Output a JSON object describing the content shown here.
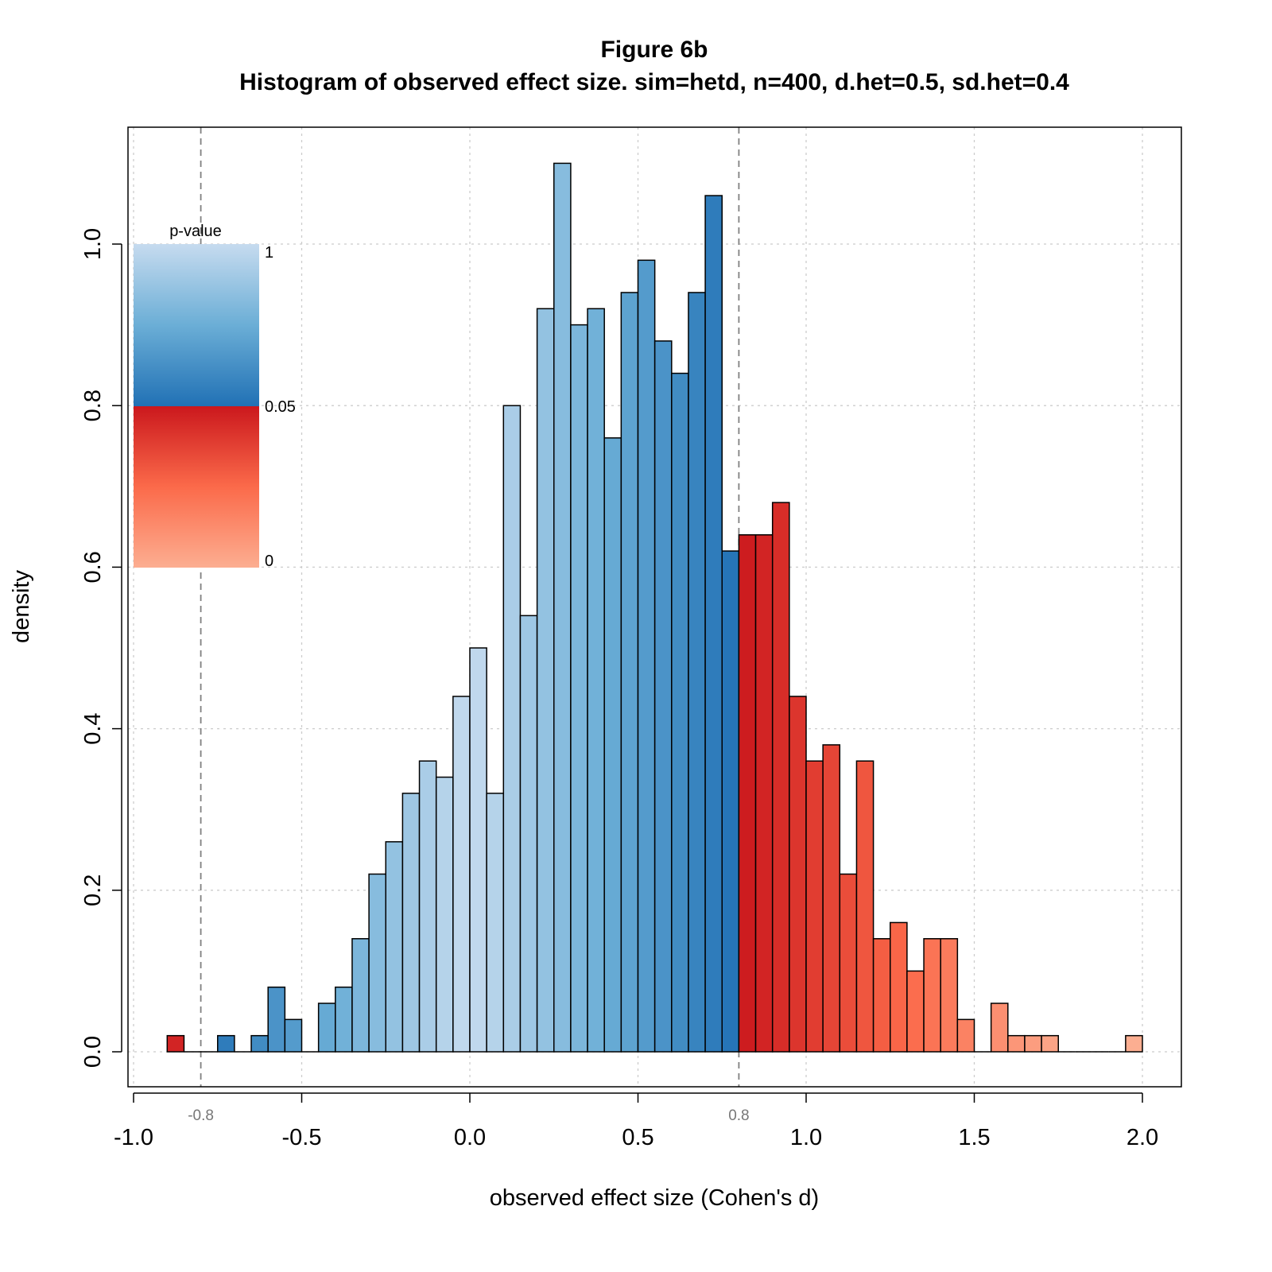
{
  "chart_data": {
    "type": "bar",
    "title": "Figure 6b",
    "subtitle": "Histogram of observed effect size. sim=hetd, n=400, d.het=0.5, sd.het=0.4",
    "xlabel": "observed effect size (Cohen's d)",
    "ylabel": "density",
    "xlim": [
      -1.0,
      2.0
    ],
    "ylim": [
      0.0,
      1.1
    ],
    "x_ticks": [
      -1.0,
      -0.5,
      0.0,
      0.5,
      1.0,
      1.5,
      2.0
    ],
    "x_tick_labels": [
      "-1.0",
      "-0.5",
      "0.0",
      "0.5",
      "1.0",
      "1.5",
      "2.0"
    ],
    "y_ticks": [
      0.0,
      0.2,
      0.4,
      0.6,
      0.8,
      1.0
    ],
    "y_tick_labels": [
      "0.0",
      "0.2",
      "0.4",
      "0.6",
      "0.8",
      "1.0"
    ],
    "grid": true,
    "bin_width": 0.05,
    "bin_start": -0.9,
    "densities": [
      0.02,
      0,
      0,
      0.02,
      0,
      0.02,
      0.08,
      0.04,
      0,
      0.06,
      0.08,
      0.14,
      0.22,
      0.26,
      0.32,
      0.36,
      0.34,
      0.44,
      0.5,
      0.32,
      0.8,
      0.54,
      0.92,
      1.1,
      0.9,
      0.92,
      0.76,
      0.94,
      0.98,
      0.88,
      0.84,
      0.94,
      1.06,
      0.62,
      0.64,
      0.64,
      0.68,
      0.44,
      0.36,
      0.38,
      0.22,
      0.36,
      0.14,
      0.16,
      0.1,
      0.14,
      0.14,
      0.04,
      0,
      0.06,
      0.02,
      0.02,
      0.02,
      0,
      0,
      0,
      0,
      0.02
    ],
    "reference_lines": [
      {
        "x": -0.8,
        "label": "-0.8"
      },
      {
        "x": 0.8,
        "label": "0.8"
      }
    ],
    "legend": {
      "title": "p-value",
      "labels": [
        "1",
        "0.05",
        "0"
      ],
      "placement": "top-left"
    },
    "colors": {
      "p_one": "#c6dbef",
      "p_mid_blue": "#6baed6",
      "p_005_blue": "#2171b5",
      "p_005_red": "#cb181d",
      "p_mid_red": "#fb6a4a",
      "p_zero": "#fcae91",
      "grid": "#cccccc",
      "reference": "#808080"
    }
  }
}
